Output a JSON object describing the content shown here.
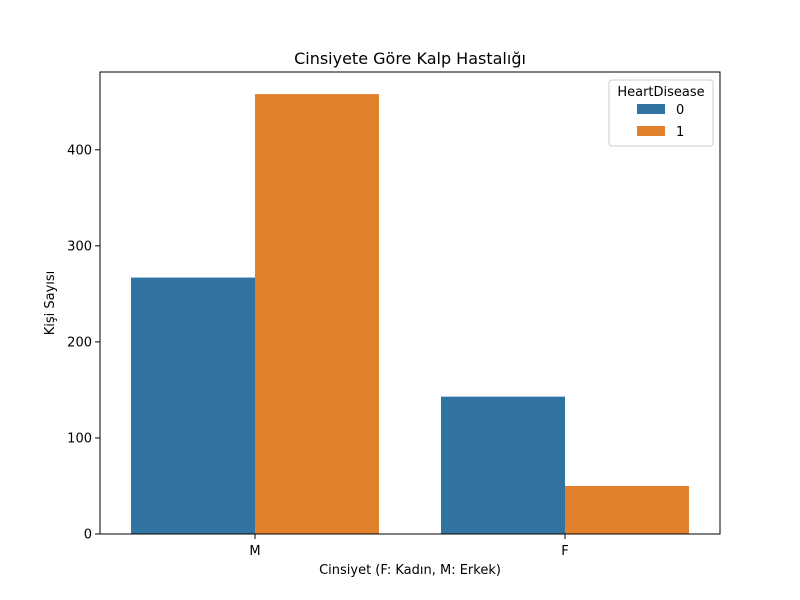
{
  "chart_data": {
    "type": "bar",
    "title": "Cinsiyete Göre Kalp Hastalığı",
    "xlabel": "Cinsiyet (F: Kadın, M: Erkek)",
    "ylabel": "Kişi Sayısı",
    "categories": [
      "M",
      "F"
    ],
    "series": [
      {
        "name": "0",
        "values": [
          267,
          143
        ],
        "color": "#3274a1"
      },
      {
        "name": "1",
        "values": [
          458,
          50
        ],
        "color": "#e1812c"
      }
    ],
    "ylim": [
      0,
      481
    ],
    "yticks": [
      0,
      100,
      200,
      300,
      400
    ],
    "legend": {
      "title": "HeartDisease",
      "placement": "top-right"
    },
    "grid": false
  }
}
